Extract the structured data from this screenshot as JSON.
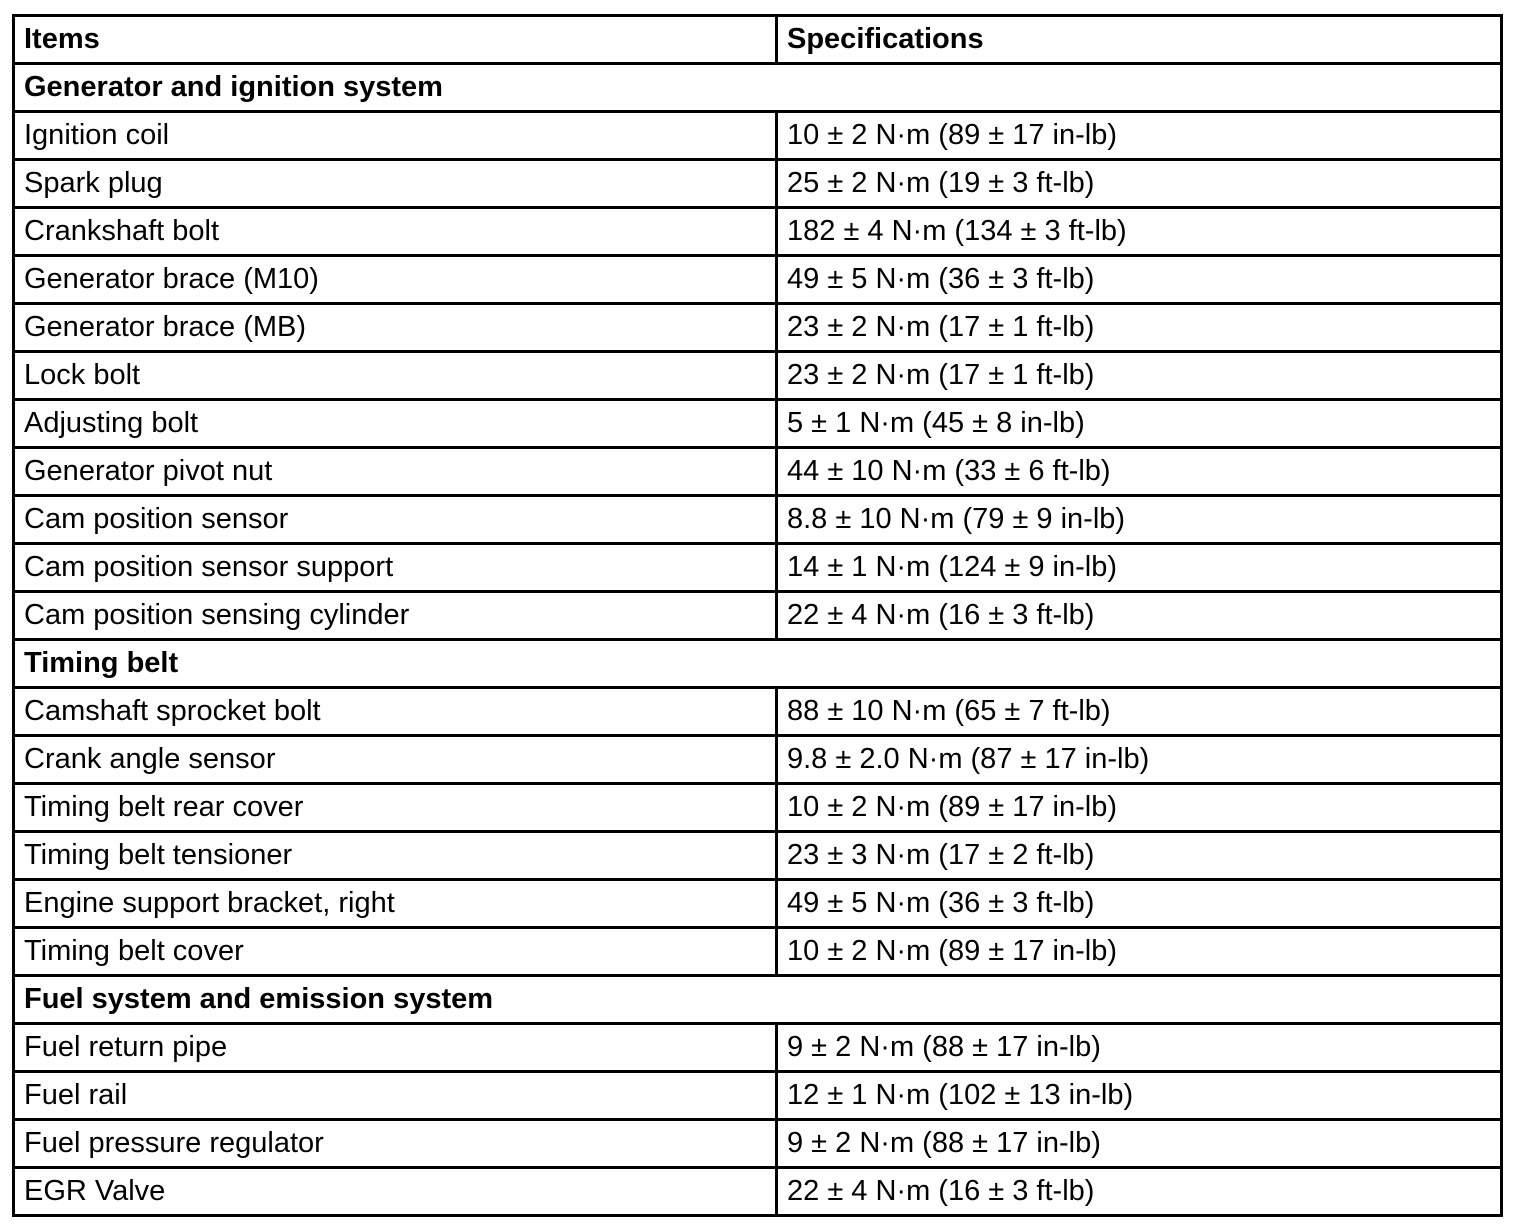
{
  "table": {
    "columns": [
      "Items",
      "Specifications"
    ],
    "sections": [
      {
        "title": "Generator and ignition system",
        "rows": [
          [
            "Ignition coil",
            "10 ± 2 N·m (89 ± 17 in-lb)"
          ],
          [
            "Spark plug",
            "25 ± 2 N·m (19 ± 3 ft-lb)"
          ],
          [
            "Crankshaft bolt",
            "182 ± 4 N·m (134 ± 3 ft-lb)"
          ],
          [
            "Generator brace (M10)",
            "49 ± 5 N·m (36 ± 3 ft-lb)"
          ],
          [
            "Generator brace (MB)",
            "23 ± 2 N·m (17 ± 1 ft-lb)"
          ],
          [
            "Lock bolt",
            "23 ± 2 N·m (17 ± 1 ft-lb)"
          ],
          [
            "Adjusting bolt",
            "5 ± 1 N·m (45 ± 8 in-lb)"
          ],
          [
            "Generator pivot nut",
            "44 ± 10 N·m (33 ± 6 ft-lb)"
          ],
          [
            "Cam position sensor",
            "8.8 ± 10 N·m (79 ± 9 in-lb)"
          ],
          [
            "Cam position sensor support",
            "14 ± 1 N·m (124 ± 9 in-lb)"
          ],
          [
            "Cam position sensing cylinder",
            "22 ± 4 N·m (16 ± 3 ft-lb)"
          ]
        ]
      },
      {
        "title": "Timing belt",
        "rows": [
          [
            "Camshaft sprocket bolt",
            "88 ± 10 N·m (65 ± 7 ft-lb)"
          ],
          [
            "Crank angle sensor",
            "9.8 ± 2.0 N·m (87 ± 17 in-lb)"
          ],
          [
            "Timing belt rear cover",
            "10 ± 2 N·m (89 ± 17 in-lb)"
          ],
          [
            "Timing belt tensioner",
            "23 ± 3 N·m (17 ± 2 ft-lb)"
          ],
          [
            "Engine support bracket, right",
            "49 ± 5 N·m (36 ± 3 ft-lb)"
          ],
          [
            "Timing belt cover",
            "10 ± 2 N·m (89 ± 17 in-lb)"
          ]
        ]
      },
      {
        "title": "Fuel system and emission system",
        "rows": [
          [
            "Fuel return pipe",
            "9 ± 2 N·m (88 ± 17 in-lb)"
          ],
          [
            "Fuel rail",
            "12 ± 1 N·m (102 ± 13 in-lb)"
          ],
          [
            "Fuel pressure regulator",
            "9 ± 2 N·m (88 ± 17 in-lb)"
          ],
          [
            "EGR Valve",
            "22 ± 4 N·m (16 ± 3 ft-lb)"
          ]
        ]
      }
    ]
  },
  "colors": {
    "text": "#000000",
    "background": "#ffffff",
    "border": "#000000"
  }
}
